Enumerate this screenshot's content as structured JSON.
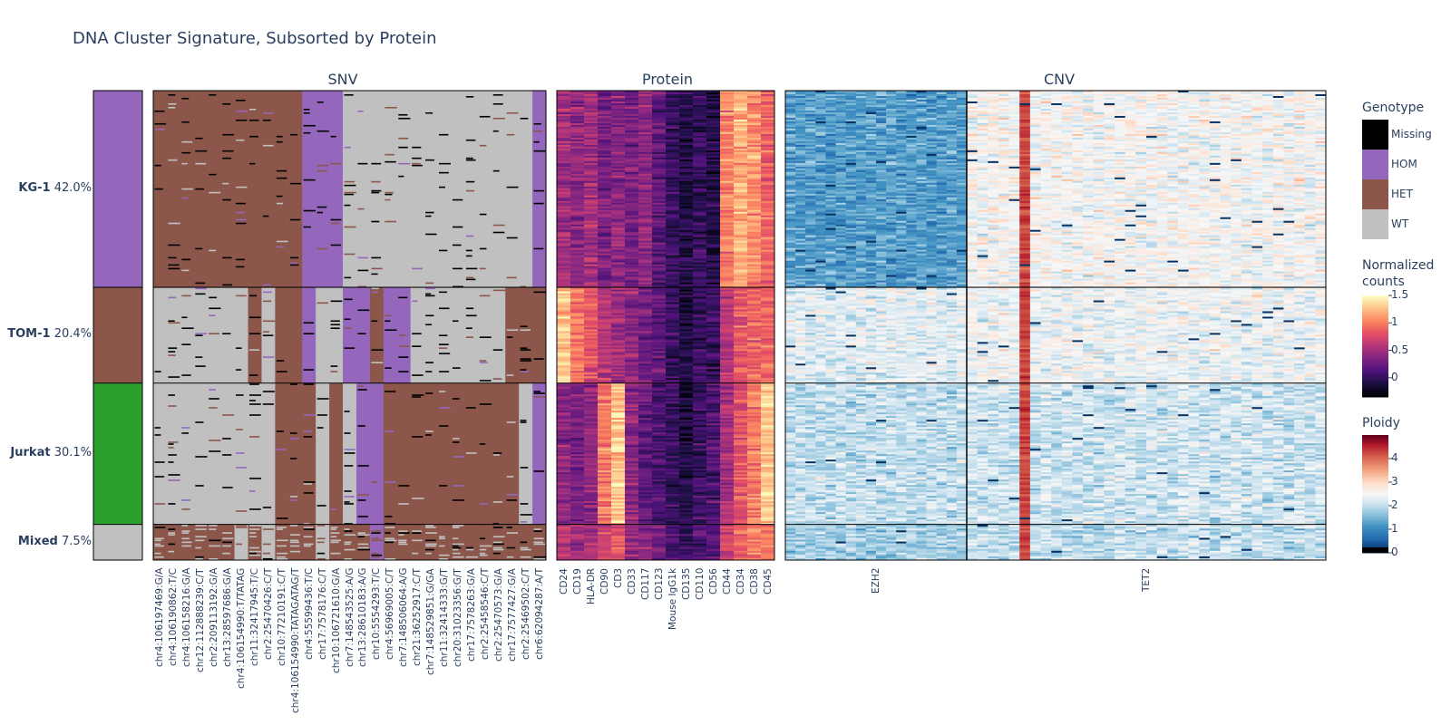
{
  "chart_data": {
    "type": "heatmap",
    "title": "DNA Cluster Signature, Subsorted by Protein",
    "panels": [
      {
        "name": "SNV",
        "variable": "Genotype"
      },
      {
        "name": "Protein",
        "variable": "Normalized counts"
      },
      {
        "name": "CNV",
        "variable": "Ploidy"
      }
    ],
    "clusters": [
      {
        "name": "KG-1",
        "percent": "42.0%",
        "fraction": 0.42,
        "color": "#9467bd",
        "label": "HOM"
      },
      {
        "name": "TOM-1",
        "percent": "20.4%",
        "fraction": 0.204,
        "color": "#8c564b",
        "label": "HET"
      },
      {
        "name": "Jurkat",
        "percent": "30.1%",
        "fraction": 0.301,
        "color": "#2ca02c",
        "label": ""
      },
      {
        "name": "Mixed",
        "percent": "7.5%",
        "fraction": 0.075,
        "color": "#c0c0c0",
        "label": ""
      }
    ],
    "snv_variants": [
      "chr4:106197469:G/A",
      "chr4:106190862:T/C",
      "chr4:106158216:G/A",
      "chr12:112888239:C/T",
      "chr2:209113192:G/A",
      "chr13:28597686:G/A",
      "chr4:106154990:T/TATAG",
      "chr11:32417945:T/C",
      "chr2:25470426:C/T",
      "chr10:77210191:C/T",
      "chr4:106154990:TATAGATAG/T",
      "chr4:55599436:T/C",
      "chr17:7578176:C/T",
      "chr10:106721610:G/A",
      "chr7:148543525:A/G",
      "chr13:28610183:A/G",
      "chr10:5554293:T/C",
      "chr4:56969005:C/T",
      "chr7:148506064:A/G",
      "chr21:36252917:C/T",
      "chr7:148529851:G/GA",
      "chr11:32414333:G/T",
      "chr20:31023356:G/T",
      "chr17:7578263:G/A",
      "chr2:25458546:C/T",
      "chr2:25470573:G/A",
      "chr17:7577427:G/A",
      "chr2:25469502:C/T",
      "chr6:62094287:A/T"
    ],
    "snv_genotype_by_cluster": {
      "KG-1": [
        "HET",
        "HET",
        "HET",
        "HET",
        "HET",
        "HET",
        "HET",
        "HET",
        "HET",
        "HET",
        "HET",
        "HOM",
        "HOM",
        "HOM",
        "WT",
        "WT",
        "WT",
        "WT",
        "WT",
        "WT",
        "WT",
        "WT",
        "WT",
        "WT",
        "WT",
        "WT",
        "WT",
        "WT",
        "HOM"
      ],
      "TOM-1": [
        "WT",
        "WT",
        "WT",
        "WT",
        "WT",
        "WT",
        "WT",
        "HET",
        "WT",
        "HET",
        "HET",
        "HOM",
        "WT",
        "WT",
        "HOM",
        "HOM",
        "HET",
        "HOM",
        "HOM",
        "WT",
        "WT",
        "WT",
        "WT",
        "WT",
        "WT",
        "WT",
        "HET",
        "HET",
        "HET"
      ],
      "Jurkat": [
        "WT",
        "WT",
        "WT",
        "WT",
        "WT",
        "WT",
        "WT",
        "WT",
        "WT",
        "HET",
        "HET",
        "HET",
        "WT",
        "HET",
        "WT",
        "HOM",
        "HOM",
        "HET",
        "HET",
        "HET",
        "HET",
        "HET",
        "HET",
        "HET",
        "HET",
        "HET",
        "HET",
        "WT",
        "HOM"
      ],
      "Mixed": [
        "HET",
        "HET",
        "HET",
        "HET",
        "HET",
        "HET",
        "WT",
        "HET",
        "WT",
        "HET",
        "HET",
        "HET",
        "WT",
        "HET",
        "HET",
        "HET",
        "HOM",
        "HET",
        "HET",
        "HET",
        "HET",
        "HET",
        "HET",
        "HET",
        "HET",
        "HET",
        "HET",
        "HET",
        "HET"
      ]
    },
    "proteins": [
      "CD24",
      "CD19",
      "HLA-DR",
      "CD90",
      "CD3",
      "CD33",
      "CD117",
      "CD123",
      "Mouse IgG1k",
      "CD135",
      "CD110",
      "CD56",
      "CD44",
      "CD34",
      "CD38",
      "CD45"
    ],
    "protein_mean_by_cluster": {
      "KG-1": [
        0.5,
        0.4,
        0.5,
        0.3,
        0.4,
        0.3,
        0.4,
        0.2,
        0.0,
        -0.1,
        0.0,
        -0.1,
        1.0,
        1.2,
        1.1,
        0.9
      ],
      "TOM-1": [
        1.3,
        1.0,
        0.8,
        0.6,
        0.5,
        0.4,
        0.3,
        0.2,
        0.0,
        -0.1,
        0.0,
        0.0,
        0.6,
        0.8,
        0.9,
        0.9
      ],
      "Jurkat": [
        0.4,
        0.3,
        0.4,
        1.0,
        1.3,
        0.4,
        0.2,
        0.1,
        0.0,
        -0.1,
        0.0,
        0.1,
        0.5,
        0.8,
        1.0,
        1.3
      ],
      "Mixed": [
        0.6,
        0.5,
        0.6,
        0.7,
        0.8,
        0.5,
        0.4,
        0.3,
        0.1,
        0.0,
        0.1,
        0.1,
        0.7,
        0.9,
        1.0,
        1.0
      ]
    },
    "cnv_genes": [
      "EZH2",
      "TET2"
    ],
    "cnv_amplicon_counts": [
      18,
      34
    ],
    "cnv_ploidy_by_cluster": {
      "KG-1": [
        1.2,
        2.5
      ],
      "TOM-1": [
        2.3,
        2.4
      ],
      "Jurkat": [
        2.0,
        2.1
      ],
      "Mixed": [
        1.8,
        2.0
      ]
    },
    "legends": {
      "genotype": {
        "title": "Genotype",
        "items": [
          "Missing",
          "HOM",
          "HET",
          "WT"
        ],
        "colors": [
          "#000000",
          "#9467bd",
          "#8c564b",
          "#c0c0c0"
        ]
      },
      "protein": {
        "title": "Normalized counts",
        "title_line1": "Normalized",
        "title_line2": "counts",
        "ticks": [
          "1.5",
          "1",
          "0.5",
          "0"
        ],
        "tick_values": [
          1.5,
          1,
          0.5,
          0
        ],
        "range": [
          -0.35,
          1.5
        ]
      },
      "ploidy": {
        "title": "Ploidy",
        "ticks": [
          "4",
          "3",
          "2",
          "1",
          "0"
        ],
        "tick_values": [
          4,
          3,
          2,
          1,
          0
        ],
        "range": [
          0,
          5
        ]
      }
    }
  }
}
